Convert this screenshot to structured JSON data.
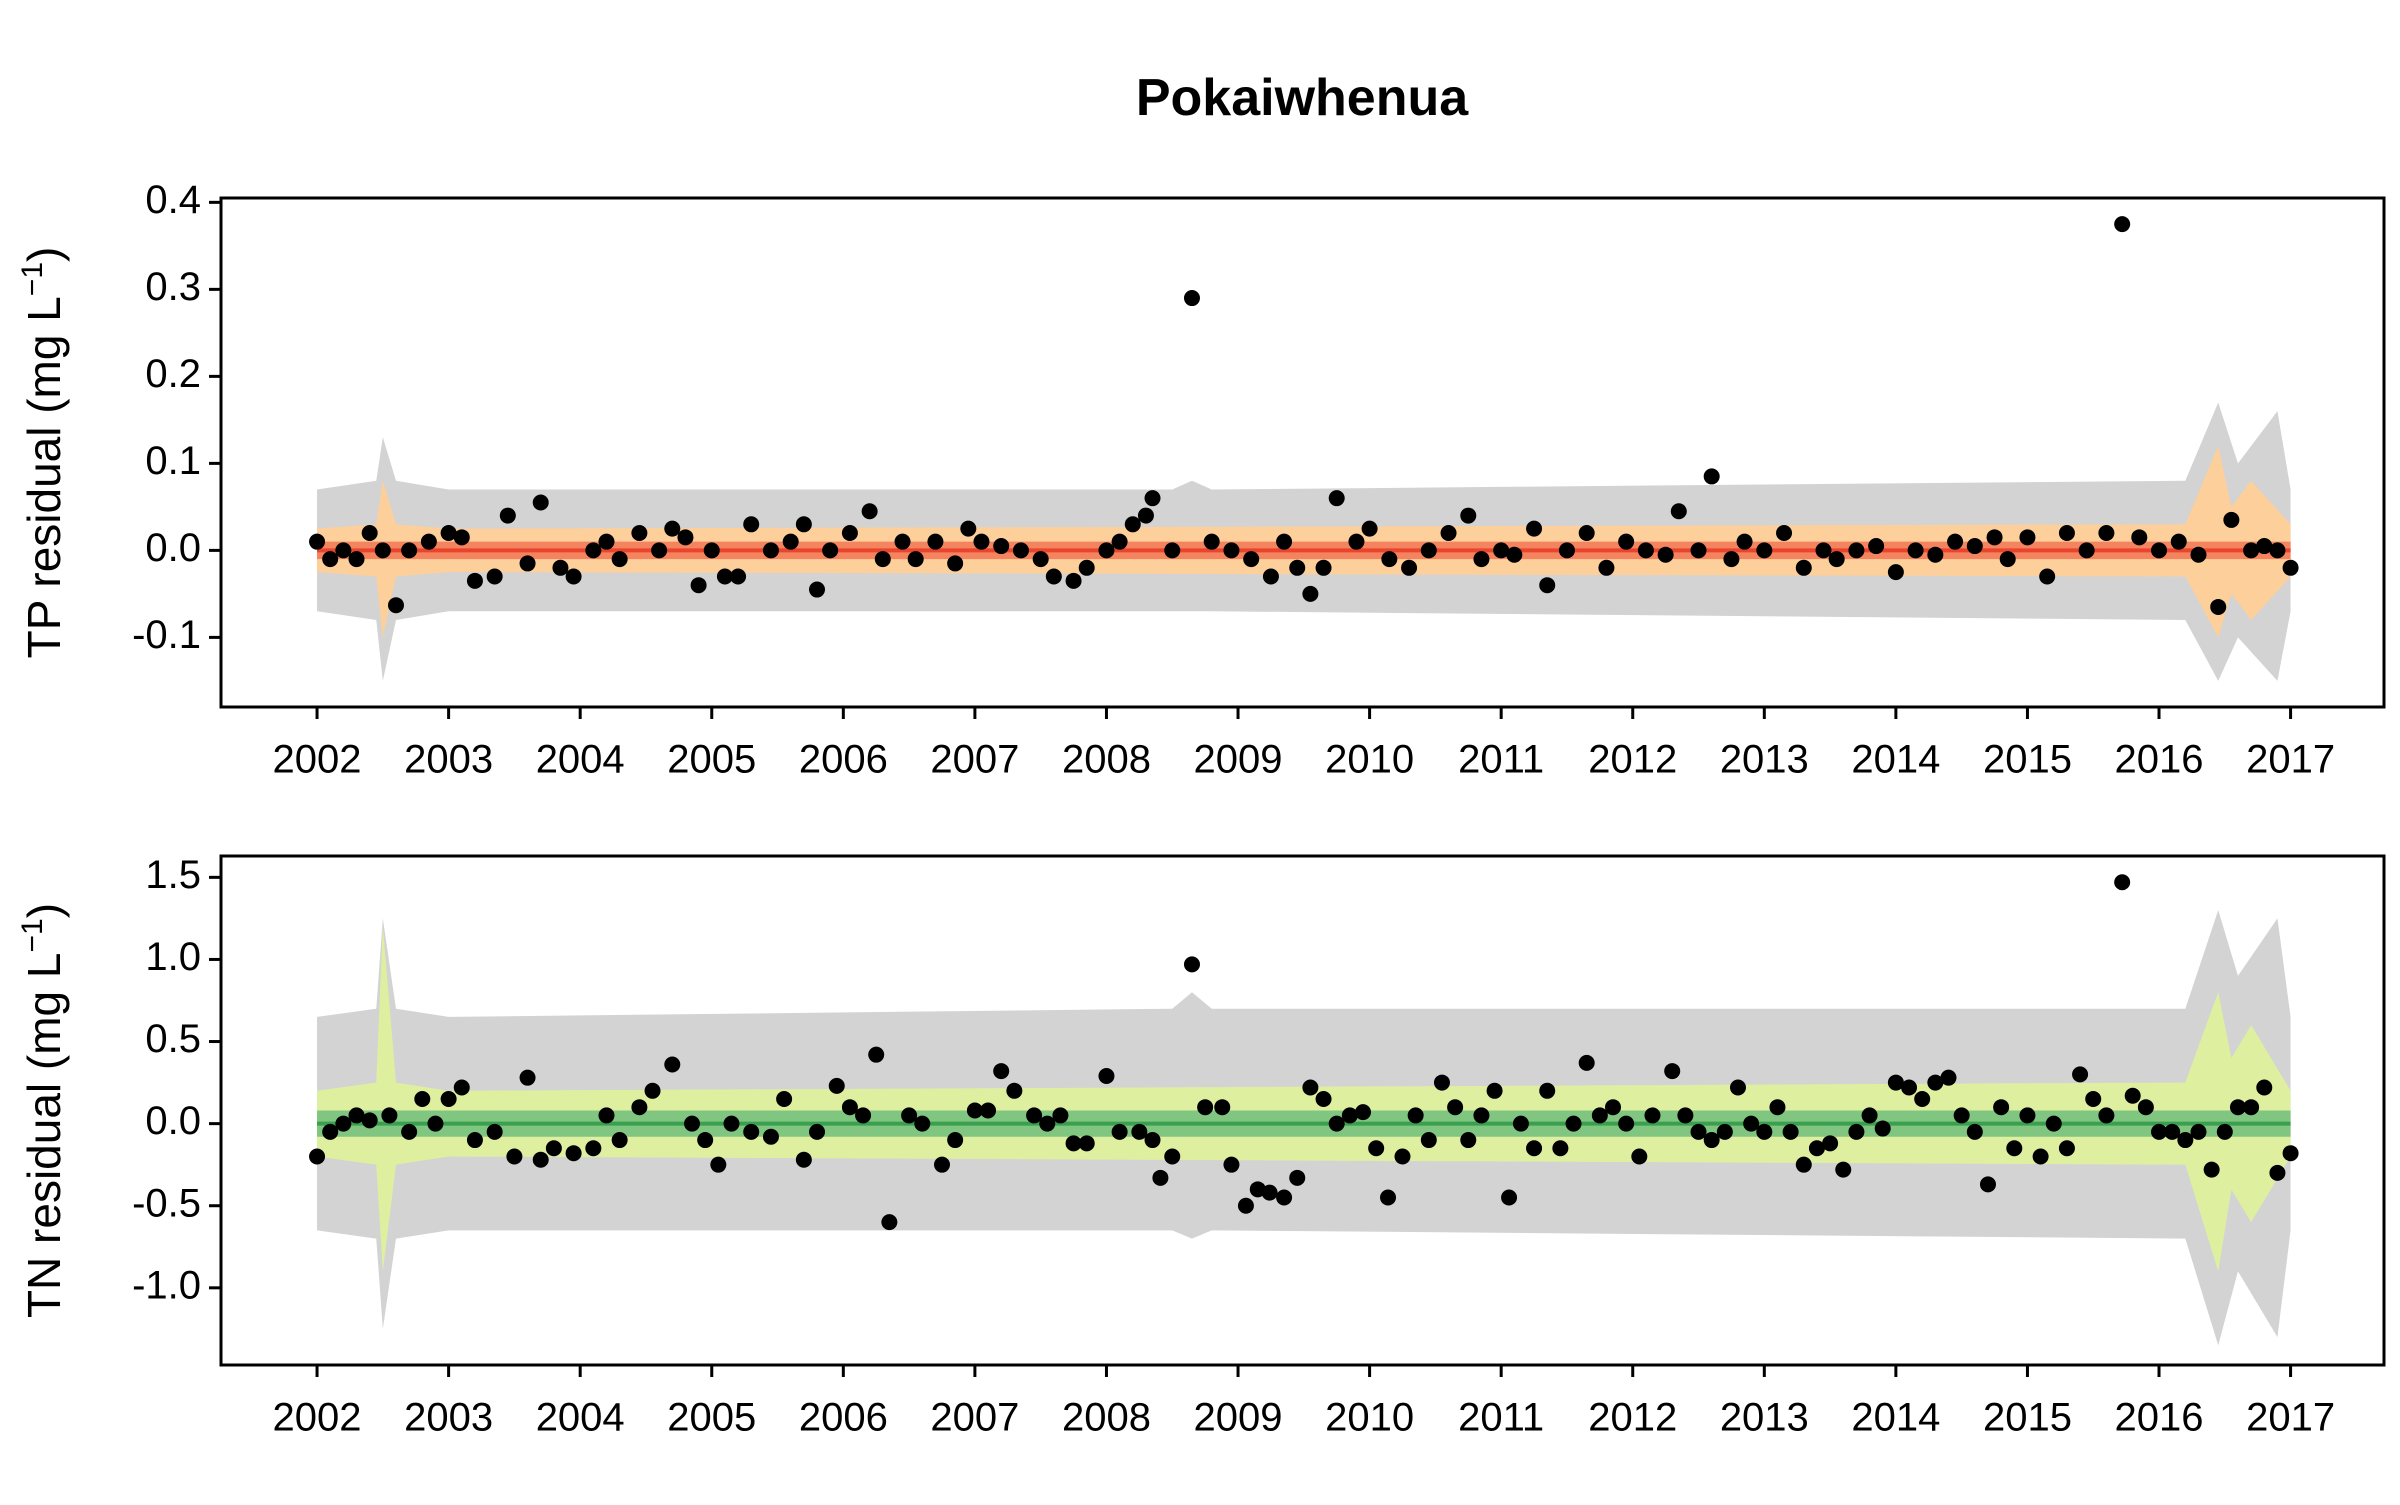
{
  "chart_data": [
    {
      "type": "scatter",
      "title": "Pokaiwhenua",
      "ylabel": "TP residual  (mg L",
      "ylabel_sup": "−1",
      "ylabel_end": ")",
      "xlim": [
        2001.27,
        2017.71
      ],
      "xticks": [
        2002,
        2003,
        2004,
        2005,
        2006,
        2007,
        2008,
        2009,
        2010,
        2011,
        2012,
        2013,
        2014,
        2015,
        2016,
        2017
      ],
      "ylim": [
        -0.18,
        0.405
      ],
      "yticks": [
        -0.1,
        {
          "value": 0.0,
          "label": "0.0"
        },
        0.1,
        0.2,
        0.3,
        0.4
      ],
      "bands": [
        {
          "color": "#d3d3d3",
          "x": [
            2002,
            2002.45,
            2002.5,
            2002.6,
            2003,
            2008.5,
            2008.65,
            2008.8,
            2016.2,
            2016.45,
            2016.6,
            2016.9,
            2017
          ],
          "upper": [
            0.07,
            0.08,
            0.13,
            0.08,
            0.07,
            0.07,
            0.08,
            0.07,
            0.08,
            0.17,
            0.1,
            0.16,
            0.07
          ],
          "lower": [
            -0.07,
            -0.08,
            -0.15,
            -0.08,
            -0.07,
            -0.07,
            -0.07,
            -0.07,
            -0.08,
            -0.15,
            -0.1,
            -0.15,
            -0.07
          ]
        },
        {
          "color": "#fdcf9a",
          "x": [
            2002,
            2002.45,
            2002.5,
            2002.6,
            2003,
            2016.2,
            2016.45,
            2016.55,
            2016.7,
            2017
          ],
          "upper": [
            0.025,
            0.03,
            0.08,
            0.03,
            0.025,
            0.03,
            0.12,
            0.05,
            0.08,
            0.03
          ],
          "lower": [
            -0.025,
            -0.03,
            -0.1,
            -0.03,
            -0.025,
            -0.03,
            -0.1,
            -0.05,
            -0.08,
            -0.03
          ]
        },
        {
          "color": "#f4845f",
          "x": [
            2002,
            2017
          ],
          "upper": [
            0.01,
            0.01
          ],
          "lower": [
            -0.01,
            -0.01
          ]
        }
      ],
      "trend": {
        "color": "#e8452c",
        "x": [
          2002,
          2017
        ],
        "values": [
          0,
          0
        ]
      },
      "points": {
        "color": "#000000",
        "x": [
          2002.0,
          2002.1,
          2002.2,
          2002.3,
          2002.4,
          2002.5,
          2002.6,
          2002.7,
          2002.85,
          2003.0,
          2003.1,
          2003.2,
          2003.35,
          2003.45,
          2003.6,
          2003.7,
          2003.85,
          2003.95,
          2004.1,
          2004.2,
          2004.3,
          2004.45,
          2004.6,
          2004.7,
          2004.8,
          2004.9,
          2005.0,
          2005.1,
          2005.2,
          2005.3,
          2005.45,
          2005.6,
          2005.7,
          2005.8,
          2005.9,
          2006.05,
          2006.2,
          2006.3,
          2006.45,
          2006.55,
          2006.7,
          2006.85,
          2006.95,
          2007.05,
          2007.2,
          2007.35,
          2007.5,
          2007.6,
          2007.75,
          2007.85,
          2008.0,
          2008.1,
          2008.2,
          2008.3,
          2008.35,
          2008.5,
          2008.65,
          2008.8,
          2008.95,
          2009.1,
          2009.25,
          2009.35,
          2009.45,
          2009.55,
          2009.65,
          2009.75,
          2009.9,
          2010.0,
          2010.15,
          2010.3,
          2010.45,
          2010.6,
          2010.75,
          2010.85,
          2011.0,
          2011.1,
          2011.25,
          2011.35,
          2011.5,
          2011.65,
          2011.8,
          2011.95,
          2012.1,
          2012.25,
          2012.35,
          2012.5,
          2012.6,
          2012.75,
          2012.85,
          2013.0,
          2013.15,
          2013.3,
          2013.45,
          2013.55,
          2013.7,
          2013.85,
          2014.0,
          2014.15,
          2014.3,
          2014.45,
          2014.6,
          2014.75,
          2014.85,
          2015.0,
          2015.15,
          2015.3,
          2015.45,
          2015.6,
          2015.72,
          2015.85,
          2016.0,
          2016.15,
          2016.3,
          2016.45,
          2016.55,
          2016.7,
          2016.8,
          2016.9,
          2017.0
        ],
        "values": [
          0.01,
          -0.01,
          0.0,
          -0.01,
          0.02,
          0.0,
          -0.063,
          0.0,
          0.01,
          0.02,
          0.015,
          -0.035,
          -0.03,
          0.04,
          -0.015,
          0.055,
          -0.02,
          -0.03,
          0.0,
          0.01,
          -0.01,
          0.02,
          0.0,
          0.025,
          0.015,
          -0.04,
          0.0,
          -0.03,
          -0.03,
          0.03,
          0.0,
          0.01,
          0.03,
          -0.045,
          0.0,
          0.02,
          0.045,
          -0.01,
          0.01,
          -0.01,
          0.01,
          -0.015,
          0.025,
          0.01,
          0.005,
          0.0,
          -0.01,
          -0.03,
          -0.035,
          -0.02,
          0.0,
          0.01,
          0.03,
          0.04,
          0.06,
          0.0,
          0.29,
          0.01,
          0.0,
          -0.01,
          -0.03,
          0.01,
          -0.02,
          -0.05,
          -0.02,
          0.06,
          0.01,
          0.025,
          -0.01,
          -0.02,
          0.0,
          0.02,
          0.04,
          -0.01,
          0.0,
          -0.005,
          0.025,
          -0.04,
          0.0,
          0.02,
          -0.02,
          0.01,
          0.0,
          -0.005,
          0.045,
          0.0,
          0.085,
          -0.01,
          0.01,
          0.0,
          0.02,
          -0.02,
          0.0,
          -0.01,
          0.0,
          0.005,
          -0.025,
          0.0,
          -0.005,
          0.01,
          0.005,
          0.015,
          -0.01,
          0.015,
          -0.03,
          0.02,
          0.0,
          0.02,
          0.375,
          0.015,
          0.0,
          0.01,
          -0.005,
          -0.065,
          0.035,
          0.0,
          0.005,
          0.0,
          -0.02
        ]
      }
    },
    {
      "type": "scatter",
      "ylabel": "TN residual  (mg L",
      "ylabel_sup": "−1",
      "ylabel_end": ")",
      "xlim": [
        2001.27,
        2017.71
      ],
      "xticks": [
        2002,
        2003,
        2004,
        2005,
        2006,
        2007,
        2008,
        2009,
        2010,
        2011,
        2012,
        2013,
        2014,
        2015,
        2016,
        2017
      ],
      "ylim": [
        -1.47,
        1.63
      ],
      "yticks": [
        {
          "value": -1.0,
          "label": "-1.0"
        },
        -0.5,
        {
          "value": 0.0,
          "label": "0.0"
        },
        0.5,
        {
          "value": 1.0,
          "label": "1.0"
        },
        1.5
      ],
      "bands": [
        {
          "color": "#d3d3d3",
          "x": [
            2002,
            2002.45,
            2002.5,
            2002.6,
            2003,
            2008.5,
            2008.65,
            2008.8,
            2016.2,
            2016.45,
            2016.6,
            2016.9,
            2017
          ],
          "upper": [
            0.65,
            0.7,
            1.25,
            0.7,
            0.65,
            0.7,
            0.8,
            0.7,
            0.7,
            1.3,
            0.9,
            1.25,
            0.65
          ],
          "lower": [
            -0.65,
            -0.7,
            -1.25,
            -0.7,
            -0.65,
            -0.65,
            -0.7,
            -0.65,
            -0.7,
            -1.35,
            -0.9,
            -1.3,
            -0.65
          ]
        },
        {
          "color": "#def0a0",
          "x": [
            2002,
            2002.45,
            2002.5,
            2002.6,
            2003,
            2016.2,
            2016.45,
            2016.55,
            2016.7,
            2017
          ],
          "upper": [
            0.2,
            0.25,
            1.2,
            0.25,
            0.2,
            0.25,
            0.8,
            0.4,
            0.6,
            0.2
          ],
          "lower": [
            -0.2,
            -0.25,
            -0.9,
            -0.25,
            -0.2,
            -0.25,
            -0.9,
            -0.4,
            -0.6,
            -0.2
          ]
        },
        {
          "color": "#80c680",
          "x": [
            2002,
            2017
          ],
          "upper": [
            0.08,
            0.08
          ],
          "lower": [
            -0.08,
            -0.08
          ]
        }
      ],
      "trend": {
        "color": "#3aa050",
        "x": [
          2002,
          2017
        ],
        "values": [
          0,
          0
        ]
      },
      "points": {
        "color": "#000000",
        "x": [
          2002.0,
          2002.1,
          2002.2,
          2002.3,
          2002.4,
          2002.55,
          2002.7,
          2002.8,
          2002.9,
          2003.0,
          2003.1,
          2003.2,
          2003.35,
          2003.5,
          2003.6,
          2003.7,
          2003.8,
          2003.95,
          2004.1,
          2004.2,
          2004.3,
          2004.45,
          2004.55,
          2004.7,
          2004.85,
          2004.95,
          2005.05,
          2005.15,
          2005.3,
          2005.45,
          2005.55,
          2005.7,
          2005.8,
          2005.95,
          2006.05,
          2006.15,
          2006.25,
          2006.35,
          2006.5,
          2006.6,
          2006.75,
          2006.85,
          2007.0,
          2007.1,
          2007.2,
          2007.3,
          2007.45,
          2007.55,
          2007.65,
          2007.75,
          2007.85,
          2008.0,
          2008.1,
          2008.25,
          2008.35,
          2008.41,
          2008.5,
          2008.65,
          2008.75,
          2008.88,
          2008.95,
          2009.06,
          2009.15,
          2009.24,
          2009.35,
          2009.45,
          2009.55,
          2009.65,
          2009.75,
          2009.85,
          2009.95,
          2010.05,
          2010.14,
          2010.25,
          2010.35,
          2010.45,
          2010.55,
          2010.65,
          2010.75,
          2010.85,
          2010.95,
          2011.06,
          2011.15,
          2011.25,
          2011.35,
          2011.45,
          2011.55,
          2011.65,
          2011.75,
          2011.85,
          2011.95,
          2012.05,
          2012.15,
          2012.3,
          2012.4,
          2012.5,
          2012.6,
          2012.7,
          2012.8,
          2012.9,
          2013.0,
          2013.1,
          2013.2,
          2013.3,
          2013.4,
          2013.5,
          2013.6,
          2013.7,
          2013.8,
          2013.9,
          2014.0,
          2014.1,
          2014.2,
          2014.3,
          2014.4,
          2014.5,
          2014.6,
          2014.7,
          2014.8,
          2014.9,
          2015.0,
          2015.1,
          2015.2,
          2015.3,
          2015.4,
          2015.5,
          2015.6,
          2015.72,
          2015.8,
          2015.9,
          2016.0,
          2016.1,
          2016.2,
          2016.3,
          2016.4,
          2016.5,
          2016.6,
          2016.7,
          2016.8,
          2016.9,
          2017.0
        ],
        "values": [
          -0.2,
          -0.05,
          0.0,
          0.05,
          0.02,
          0.05,
          -0.05,
          0.15,
          0.0,
          0.15,
          0.22,
          -0.1,
          -0.05,
          -0.2,
          0.28,
          -0.22,
          -0.15,
          -0.18,
          -0.15,
          0.05,
          -0.1,
          0.1,
          0.2,
          0.36,
          0.0,
          -0.1,
          -0.25,
          0.0,
          -0.05,
          -0.08,
          0.15,
          -0.22,
          -0.05,
          0.23,
          0.1,
          0.05,
          0.42,
          -0.6,
          0.05,
          0.0,
          -0.25,
          -0.1,
          0.08,
          0.08,
          0.32,
          0.2,
          0.05,
          0.0,
          0.05,
          -0.12,
          -0.12,
          0.29,
          -0.05,
          -0.05,
          -0.1,
          -0.33,
          -0.2,
          0.97,
          0.1,
          0.1,
          -0.25,
          -0.5,
          -0.4,
          -0.42,
          -0.45,
          -0.33,
          0.22,
          0.15,
          0.0,
          0.05,
          0.07,
          -0.15,
          -0.45,
          -0.2,
          0.05,
          -0.1,
          0.25,
          0.1,
          -0.1,
          0.05,
          0.2,
          -0.45,
          0.0,
          -0.15,
          0.2,
          -0.15,
          0.0,
          0.37,
          0.05,
          0.1,
          0.0,
          -0.2,
          0.05,
          0.32,
          0.05,
          -0.05,
          -0.1,
          -0.05,
          0.22,
          0.0,
          -0.05,
          0.1,
          -0.05,
          -0.25,
          -0.15,
          -0.12,
          -0.28,
          -0.05,
          0.05,
          -0.03,
          0.25,
          0.22,
          0.15,
          0.25,
          0.28,
          0.05,
          -0.05,
          -0.37,
          0.1,
          -0.15,
          0.05,
          -0.2,
          0.0,
          -0.15,
          0.3,
          0.15,
          0.05,
          1.47,
          0.17,
          0.1,
          -0.05,
          -0.05,
          -0.1,
          -0.05,
          -0.28,
          -0.05,
          0.1,
          0.1,
          0.22,
          -0.3,
          -0.18
        ]
      }
    }
  ]
}
